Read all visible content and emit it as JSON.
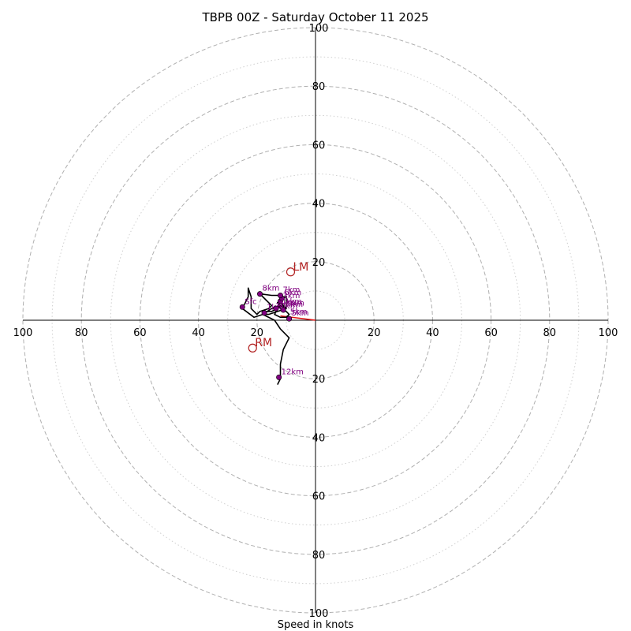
{
  "chart_data": {
    "type": "hodograph",
    "title": "TBPB 00Z - Saturday October 11 2025",
    "xlabel": "Speed in knots",
    "range": [
      -100,
      100
    ],
    "rings": {
      "major": [
        20,
        40,
        60,
        80,
        100
      ],
      "minor": [
        10,
        30,
        50,
        70,
        90
      ]
    },
    "tick_labels": {
      "x": [
        "100",
        "80",
        "60",
        "40",
        "20",
        "20",
        "40",
        "60",
        "80",
        "100"
      ],
      "y_top": [
        "100",
        "80",
        "60",
        "40",
        "20"
      ],
      "y_bottom": [
        "20",
        "40",
        "60",
        "80",
        "100"
      ]
    },
    "tick_values": {
      "x": [
        -100,
        -80,
        -60,
        -40,
        -20,
        20,
        40,
        60,
        80,
        100
      ],
      "y_top": [
        100,
        80,
        60,
        40,
        20
      ],
      "y_bottom": [
        -20,
        -40,
        -60,
        -80,
        -100
      ]
    },
    "hodograph_trace": [
      [
        -18,
        3
      ],
      [
        -15,
        3
      ],
      [
        -13,
        4
      ],
      [
        -11,
        5
      ],
      [
        -12,
        7
      ],
      [
        -13,
        6
      ],
      [
        -12,
        4
      ],
      [
        -10,
        3
      ],
      [
        -9,
        2
      ],
      [
        -10,
        1
      ],
      [
        -12,
        1
      ],
      [
        -14,
        2
      ],
      [
        -13,
        4
      ],
      [
        -12,
        6
      ],
      [
        -11,
        5
      ],
      [
        -10,
        4
      ],
      [
        -13,
        3
      ],
      [
        -16,
        2
      ],
      [
        -18,
        2
      ],
      [
        -15,
        4
      ],
      [
        -12,
        5
      ],
      [
        -10,
        4
      ],
      [
        -10,
        8
      ],
      [
        -11,
        8
      ],
      [
        -13,
        8.5
      ],
      [
        -15,
        8.5
      ],
      [
        -19,
        9
      ],
      [
        -17,
        7
      ],
      [
        -15,
        5
      ],
      [
        -16,
        4
      ],
      [
        -19,
        3
      ],
      [
        -20,
        2
      ],
      [
        -22,
        4
      ],
      [
        -22,
        8
      ],
      [
        -23,
        11
      ],
      [
        -23,
        8
      ],
      [
        -24,
        6
      ],
      [
        -25,
        4
      ],
      [
        -21,
        1
      ],
      [
        -18,
        2
      ],
      [
        -14,
        0
      ],
      [
        -12,
        -3
      ],
      [
        -9,
        -6
      ],
      [
        -11,
        -10
      ],
      [
        -12,
        -15
      ],
      [
        -12,
        -20
      ],
      [
        -13,
        -22
      ]
    ],
    "height_markers": [
      {
        "label": "Sfc",
        "u": -25,
        "v": 4.5
      },
      {
        "label": "1km",
        "u": -17.5,
        "v": 2.5
      },
      {
        "label": "2km",
        "u": -13.5,
        "v": 4
      },
      {
        "label": "3km",
        "u": -12,
        "v": 6.5
      },
      {
        "label": "4km",
        "u": -11,
        "v": 3.5
      },
      {
        "label": "5km",
        "u": -9,
        "v": 0.5
      },
      {
        "label": "6km",
        "u": -11.5,
        "v": 7.5
      },
      {
        "label": "7km",
        "u": -12,
        "v": 8.5
      },
      {
        "label": "8km",
        "u": -19,
        "v": 9
      },
      {
        "label": "12km",
        "u": -12.5,
        "v": -19.5
      }
    ],
    "extra_labels": [
      {
        "label": "10km",
        "u": -14.5,
        "v": 3.5
      },
      {
        "label": "11km",
        "u": -13,
        "v": 5
      },
      {
        "label": "9km",
        "u": -10.5,
        "v": 4.5
      },
      {
        "label": "5km",
        "u": -9.5,
        "v": 1.5
      }
    ],
    "storm_motion": [
      {
        "label": "LM",
        "u": -8.5,
        "v": 16.5
      },
      {
        "label": "RM",
        "u": -21.5,
        "v": -9.5
      }
    ],
    "mean_wind_vector": {
      "from": [
        -12,
        1.5
      ],
      "to": [
        0,
        0
      ]
    },
    "colors": {
      "trace": "#000000",
      "marker": "#800080",
      "storm": "#b22222",
      "vector": "#e01010",
      "grid": "#b0b0b0",
      "grid_minor": "#cfcfcf"
    }
  }
}
